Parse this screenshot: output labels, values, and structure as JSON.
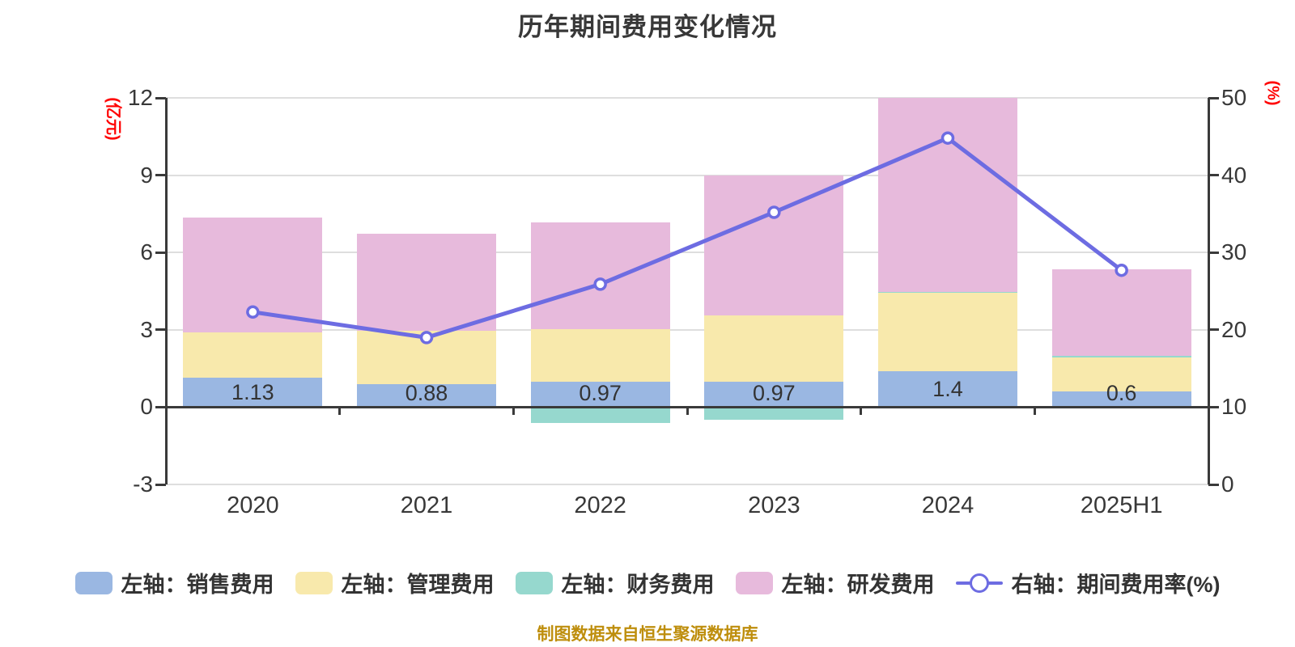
{
  "title": "历年期间费用变化情况",
  "caption": "制图数据来自恒生聚源数据库",
  "colors": {
    "axis_unit_red": "#ff0000",
    "caption_gold": "#be8e0c",
    "grid": "#dedede",
    "axis": "#3a3a3a"
  },
  "chart_data": {
    "type": "bar+line",
    "categories": [
      "2020",
      "2021",
      "2022",
      "2023",
      "2024",
      "2025H1"
    ],
    "series": [
      {
        "name": "左轴：销售费用",
        "type": "bar",
        "stack": true,
        "color": "#9ab7e2",
        "values": [
          1.13,
          0.88,
          0.97,
          0.97,
          1.4,
          0.6
        ]
      },
      {
        "name": "左轴：管理费用",
        "type": "bar",
        "stack": true,
        "color": "#f8e9ac",
        "values": [
          1.77,
          2.07,
          2.05,
          2.58,
          3.03,
          1.35
        ]
      },
      {
        "name": "左轴：财务费用",
        "type": "bar",
        "stack": true,
        "color": "#96d8ce",
        "values": [
          0,
          0,
          -0.6,
          -0.5,
          0.05,
          0.03
        ]
      },
      {
        "name": "左轴：研发费用",
        "type": "bar",
        "stack": true,
        "color": "#e7badc",
        "values": [
          4.46,
          3.78,
          4.15,
          5.44,
          7.52,
          3.37
        ]
      },
      {
        "name": "右轴：期间费用率(%)",
        "type": "line",
        "axis": "right",
        "color": "#6d6ce2",
        "values": [
          22.3,
          19.0,
          25.9,
          35.2,
          44.8,
          27.7
        ]
      }
    ],
    "bar_value_labels": [
      "1.13",
      "0.88",
      "0.97",
      "0.97",
      "1.4",
      "0.6"
    ],
    "left_axis": {
      "name": "(亿元)",
      "min": -3,
      "max": 12,
      "ticks": [
        12,
        9,
        6,
        3,
        0,
        -3
      ]
    },
    "right_axis": {
      "name": "(%)",
      "min": 0,
      "max": 50,
      "ticks": [
        50,
        40,
        30,
        20,
        10,
        0
      ]
    },
    "legend_position": "bottom",
    "grid": true
  }
}
